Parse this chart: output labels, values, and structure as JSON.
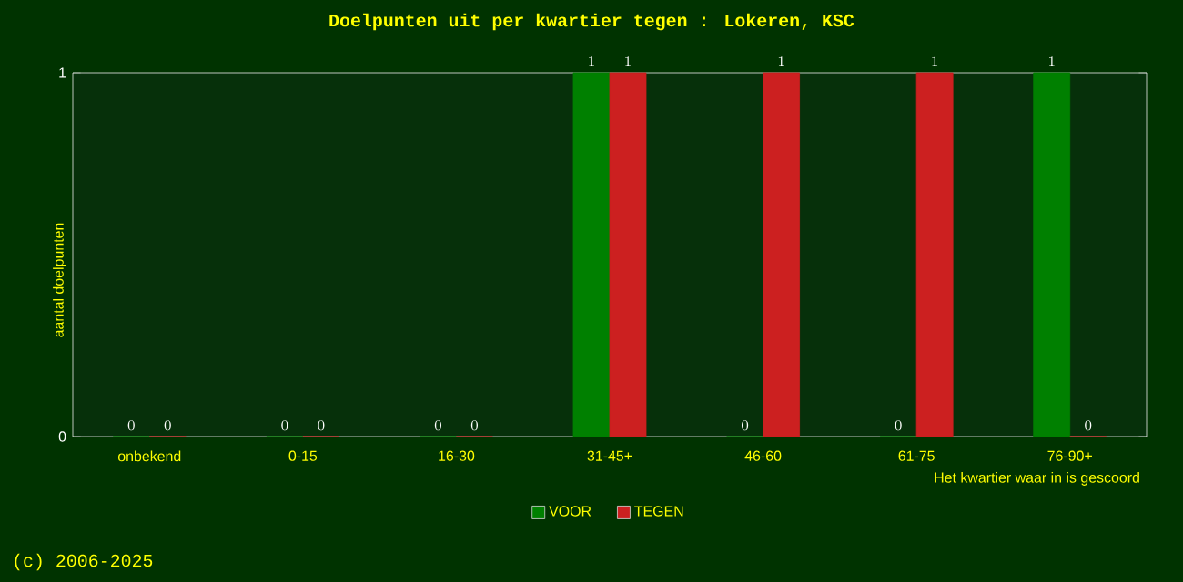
{
  "chart_data": {
    "type": "bar",
    "title": "Doelpunten uit per kwartier tegen : Lokeren, KSC",
    "xlabel": "Het kwartier waar in is gescoord",
    "ylabel": "aantal doelpunten",
    "categories": [
      "onbekend",
      "0-15",
      "16-30",
      "31-45+",
      "46-60",
      "61-75",
      "76-90+"
    ],
    "series": [
      {
        "name": "VOOR",
        "color": "#008000",
        "values": [
          0,
          0,
          0,
          1,
          0,
          0,
          1
        ]
      },
      {
        "name": "TEGEN",
        "color": "#cc2020",
        "values": [
          0,
          0,
          0,
          1,
          1,
          1,
          0
        ]
      }
    ],
    "ylim": [
      0,
      1
    ],
    "yticks": [
      0,
      1
    ],
    "data_labels": true,
    "legend": "bottom",
    "grid": false,
    "annotations": [
      "(c) 2006-2025"
    ]
  }
}
